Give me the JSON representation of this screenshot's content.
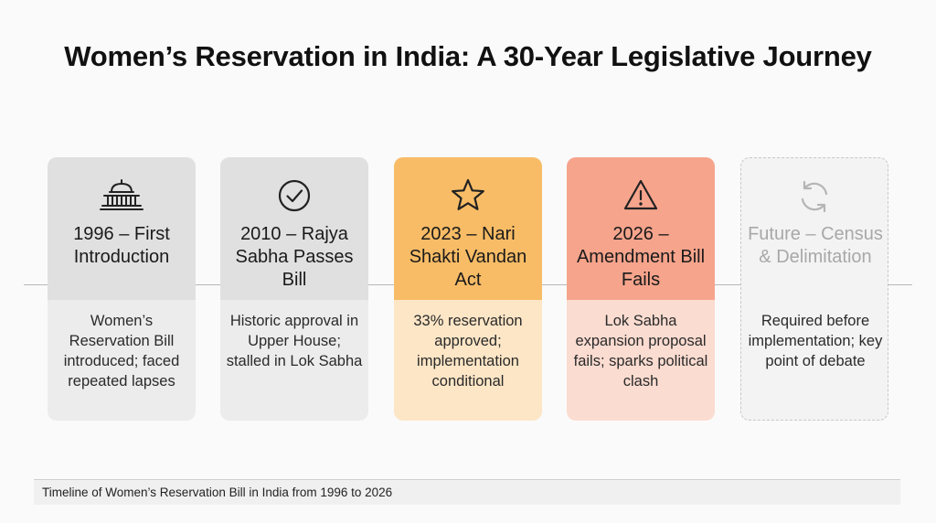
{
  "title": "Women’s Reservation in India: A 30-Year Legislative Journey",
  "milestones": [
    {
      "icon": "parliament-building-icon",
      "heading": "1996 – First Introduction",
      "description": "Women’s Reservation Bill introduced; faced repeated lapses",
      "status": "past"
    },
    {
      "icon": "check-circle-icon",
      "heading": "2010 – Rajya Sabha Passes Bill",
      "description": "Historic approval in Upper House; stalled in Lok Sabha",
      "status": "past"
    },
    {
      "icon": "star-icon",
      "heading": "2023 – Nari Shakti Vandan Act",
      "description": "33% reservation approved; implementation conditional",
      "status": "success"
    },
    {
      "icon": "warning-triangle-icon",
      "heading": "2026 – Amendment Bill Fails",
      "description": "Lok Sabha expansion proposal fails; sparks political clash",
      "status": "failure"
    },
    {
      "icon": "refresh-cycle-icon",
      "heading": "Future – Census & Delimitation",
      "description": "Required before implementation; key point of debate",
      "status": "future"
    }
  ],
  "caption": "Timeline of Women’s Reservation Bill in India from 1996 to 2026",
  "colors": {
    "past_head": "#e0e0e0",
    "past_body": "#ececec",
    "success_head": "#f8bc66",
    "success_body": "#fde6c6",
    "failure_head": "#f6a48c",
    "failure_body": "#fbdcd1",
    "future_text": "#a8a8a8"
  }
}
